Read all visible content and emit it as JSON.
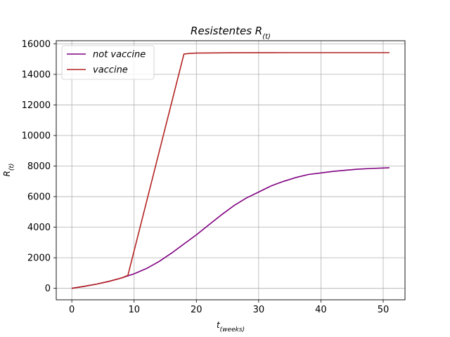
{
  "chart_data": {
    "type": "line",
    "title": "Resistentes R",
    "title_sub": "(t)",
    "xlabel": "t",
    "xlabel_sub": "(weeks)",
    "ylabel": "R",
    "ylabel_sub": "(t)",
    "xlim": [
      -2.5,
      53.5
    ],
    "ylim": [
      -750,
      16200
    ],
    "xticks": [
      0,
      10,
      20,
      30,
      40,
      50
    ],
    "yticks": [
      0,
      2000,
      4000,
      6000,
      8000,
      10000,
      12000,
      14000,
      16000
    ],
    "grid": true,
    "legend_position": "top-left",
    "series": [
      {
        "name": "not vaccine",
        "color": "#800080",
        "x": [
          0,
          2,
          4,
          6,
          8,
          10,
          12,
          14,
          16,
          18,
          20,
          22,
          24,
          26,
          28,
          30,
          32,
          34,
          36,
          38,
          40,
          42,
          44,
          46,
          48,
          51
        ],
        "y": [
          0,
          130,
          280,
          460,
          680,
          950,
          1300,
          1750,
          2300,
          2900,
          3500,
          4150,
          4800,
          5400,
          5900,
          6300,
          6700,
          7000,
          7250,
          7450,
          7550,
          7650,
          7730,
          7800,
          7840,
          7890
        ]
      },
      {
        "name": "vaccine",
        "color": "#b22222",
        "x": [
          0,
          2,
          4,
          6,
          8,
          9,
          18,
          19,
          20,
          22,
          25,
          30,
          35,
          40,
          45,
          51
        ],
        "y": [
          0,
          130,
          280,
          460,
          680,
          850,
          15330,
          15370,
          15390,
          15400,
          15410,
          15415,
          15420,
          15420,
          15420,
          15420
        ]
      }
    ]
  }
}
